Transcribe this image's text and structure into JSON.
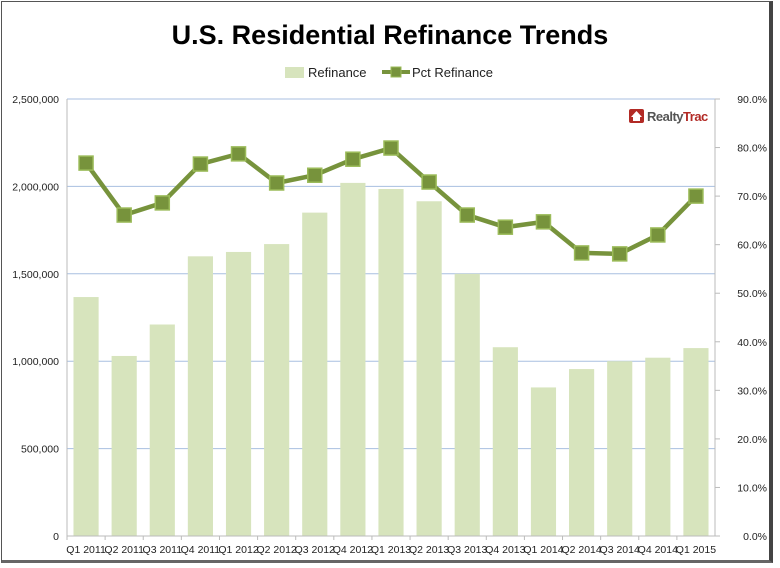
{
  "chart_data": {
    "type": "bar+line",
    "title": "U.S. Residential Refinance Trends",
    "logo": "RealtyTrac",
    "categories": [
      "Q1 2011",
      "Q2 2011",
      "Q3 2011",
      "Q4 2011",
      "Q1 2012",
      "Q2 2012",
      "Q3 2012",
      "Q4 2012",
      "Q1 2013",
      "Q2 2013",
      "Q3 2013",
      "Q4 2013",
      "Q1 2014",
      "Q2 2014",
      "Q3 2014",
      "Q4 2014",
      "Q1 2015"
    ],
    "series": [
      {
        "name": "Refinance",
        "type": "bar",
        "axis": "left",
        "color": "#d7e4bd",
        "values": [
          1367000,
          1030000,
          1210000,
          1600000,
          1625000,
          1670000,
          1850000,
          2020000,
          1985000,
          1915000,
          1500000,
          1080000,
          850000,
          955000,
          1000000,
          1020000,
          1075000
        ]
      },
      {
        "name": "Pct Refinance",
        "type": "line",
        "axis": "right",
        "color": "#77933c",
        "values": [
          76.8,
          66.1,
          68.6,
          76.6,
          78.7,
          72.7,
          74.3,
          77.6,
          79.9,
          72.9,
          66.1,
          63.6,
          64.7,
          58.3,
          58.1,
          62.0,
          70.0
        ]
      }
    ],
    "left_axis": {
      "min": 0,
      "max": 2500000,
      "ticks": [
        "0",
        "500,000",
        "1,000,000",
        "1,500,000",
        "2,000,000",
        "2,500,000"
      ]
    },
    "right_axis": {
      "min": 0,
      "max": 90,
      "ticks": [
        "0.0%",
        "10.0%",
        "20.0%",
        "30.0%",
        "40.0%",
        "50.0%",
        "60.0%",
        "70.0%",
        "80.0%",
        "90.0%"
      ]
    },
    "legend": "top",
    "grid": true,
    "gridline_color": "#a8bfe0"
  }
}
